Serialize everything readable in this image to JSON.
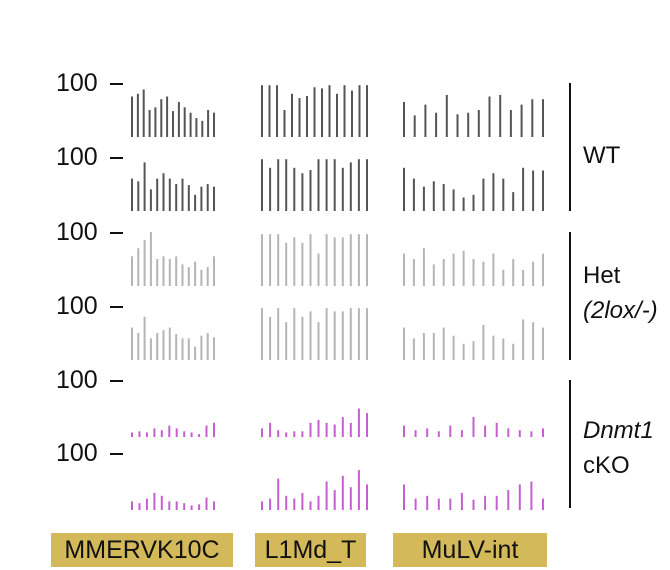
{
  "chart_data": {
    "type": "bar",
    "style": "genome-track methylation bar plot",
    "y_tick_label": "100",
    "te_families": [
      "MMERVK10C",
      "L1Md_T",
      "MuLV-int"
    ],
    "te_box_color": "#d4b95a",
    "groups": [
      {
        "label_line1": "WT",
        "label_line2": "",
        "italic_line1": false,
        "italic_line2": false,
        "color": "#555555"
      },
      {
        "label_line1": "Het",
        "label_line2": "(2lox/-)",
        "italic_line1": false,
        "italic_line2": true,
        "color": "#b5b5b5"
      },
      {
        "label_line1": "Dnmt1",
        "label_line2": "cKO",
        "italic_line1": true,
        "italic_line2": false,
        "color": "#c45fd0"
      }
    ],
    "tracks": [
      {
        "group": 0,
        "family_values": [
          [
            75,
            80,
            88,
            50,
            55,
            70,
            75,
            48,
            65,
            55,
            45,
            35,
            30,
            50,
            45
          ],
          [
            96,
            96,
            96,
            50,
            80,
            72,
            76,
            92,
            90,
            96,
            80,
            96,
            86,
            96,
            96
          ],
          [
            65,
            40,
            60,
            45,
            78,
            42,
            45,
            50,
            75,
            78,
            50,
            60,
            70,
            70
          ]
        ]
      },
      {
        "group": 0,
        "family_values": [
          [
            60,
            55,
            90,
            40,
            60,
            70,
            60,
            50,
            60,
            48,
            30,
            45,
            50,
            45
          ],
          [
            96,
            80,
            96,
            96,
            80,
            70,
            76,
            96,
            96,
            96,
            80,
            90,
            96,
            96
          ],
          [
            80,
            60,
            45,
            55,
            50,
            40,
            25,
            30,
            60,
            70,
            60,
            35,
            80,
            75,
            75
          ]
        ]
      },
      {
        "group": 1,
        "family_values": [
          [
            55,
            70,
            85,
            100,
            50,
            55,
            50,
            55,
            40,
            35,
            45,
            30,
            35,
            55
          ],
          [
            96,
            96,
            96,
            80,
            90,
            80,
            96,
            60,
            96,
            90,
            90,
            96,
            96,
            96
          ],
          [
            60,
            50,
            70,
            40,
            50,
            60,
            65,
            50,
            45,
            60,
            30,
            50,
            30,
            45,
            60
          ]
        ]
      },
      {
        "group": 1,
        "family_values": [
          [
            60,
            50,
            80,
            40,
            50,
            55,
            60,
            48,
            40,
            40,
            25,
            45,
            50,
            42
          ],
          [
            96,
            80,
            96,
            70,
            96,
            80,
            90,
            70,
            96,
            90,
            90,
            96,
            96,
            96
          ],
          [
            60,
            40,
            50,
            50,
            60,
            45,
            30,
            35,
            65,
            45,
            40,
            30,
            75,
            70,
            60
          ]
        ]
      },
      {
        "group": 2,
        "family_values": [
          [
            8,
            10,
            8,
            15,
            12,
            20,
            15,
            10,
            8,
            5,
            20,
            25
          ],
          [
            15,
            25,
            12,
            8,
            10,
            10,
            25,
            30,
            25,
            22,
            35,
            25,
            50,
            42
          ],
          [
            20,
            12,
            15,
            10,
            20,
            12,
            35,
            20,
            25,
            15,
            12,
            10,
            15
          ]
        ]
      },
      {
        "group": 2,
        "family_values": [
          [
            15,
            12,
            20,
            30,
            25,
            15,
            15,
            12,
            8,
            10,
            22,
            15
          ],
          [
            15,
            20,
            55,
            25,
            20,
            30,
            15,
            25,
            50,
            35,
            60,
            40,
            70,
            45
          ],
          [
            45,
            20,
            25,
            20,
            20,
            30,
            18,
            25,
            25,
            35,
            45,
            50,
            20
          ]
        ]
      }
    ]
  }
}
